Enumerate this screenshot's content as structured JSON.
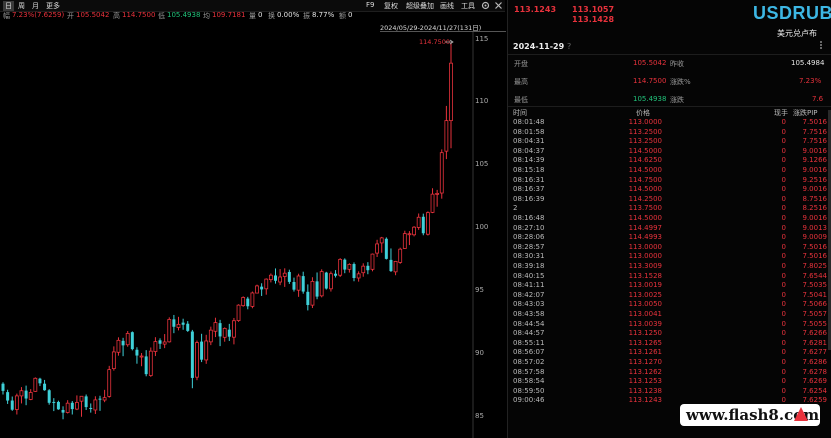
{
  "toolbar": {
    "left": [
      "日",
      "周",
      "月",
      "更多"
    ],
    "right": [
      "F9",
      "复权",
      "超级叠加",
      "画线",
      "工具"
    ],
    "icons": [
      "gear-icon",
      "close-icon"
    ]
  },
  "infobar": {
    "amp_label": "幅",
    "amp_value": "7.23%(7.6259)",
    "open_label": "开",
    "open_value": "105.5042",
    "high_label": "高",
    "high_value": "114.7500",
    "low_label": "低",
    "low_value": "105.4938",
    "avg_label": "均",
    "avg_value": "109.7181",
    "vol_label": "量",
    "vol_value": "0",
    "turn_label": "换",
    "turn_value": "0.00%",
    "swing_label": "振",
    "swing_value": "8.77%",
    "amount_label": "额",
    "amount_value": "0"
  },
  "date_range": "2024/05/29-2024/11/27(131日)",
  "chart": {
    "max_label": "114.7500",
    "y_ticks": [
      "115",
      "110",
      "105",
      "100",
      "95",
      "90",
      "85"
    ],
    "y_min": 83.3,
    "y_max": 115.6,
    "colors": {
      "up": "#e8323c",
      "down": "#3fd0d8"
    },
    "ohlc": [
      [
        87.62,
        87.74,
        86.76,
        87.05
      ],
      [
        86.95,
        87.14,
        86.01,
        86.28
      ],
      [
        86.28,
        86.6,
        85.46,
        85.55
      ],
      [
        85.57,
        86.83,
        85.17,
        86.65
      ],
      [
        86.65,
        87.35,
        86.05,
        87.06
      ],
      [
        87.07,
        87.47,
        85.91,
        86.44
      ],
      [
        86.37,
        87.19,
        86.31,
        86.92
      ],
      [
        87.01,
        88.12,
        86.97,
        88.05
      ],
      [
        88.02,
        88.09,
        87.43,
        87.65
      ],
      [
        87.62,
        87.92,
        87.06,
        87.1
      ],
      [
        87.1,
        87.19,
        85.95,
        86.1
      ],
      [
        86.17,
        86.47,
        85.44,
        86.16
      ],
      [
        86.17,
        86.27,
        85.54,
        85.58
      ],
      [
        85.53,
        85.82,
        84.79,
        85.32
      ],
      [
        85.33,
        86.31,
        85.25,
        86.07
      ],
      [
        86.1,
        86.24,
        85.17,
        85.6
      ],
      [
        85.6,
        86.69,
        85.52,
        86.13
      ],
      [
        86.23,
        86.62,
        84.99,
        86.62
      ],
      [
        86.61,
        86.76,
        85.53,
        85.76
      ],
      [
        85.69,
        86.05,
        85.32,
        85.66
      ],
      [
        85.53,
        86.62,
        85.21,
        86.33
      ],
      [
        86.43,
        86.66,
        85.46,
        86.39
      ],
      [
        86.32,
        87.13,
        86.15,
        86.51
      ],
      [
        86.61,
        89.04,
        86.51,
        88.74
      ],
      [
        88.82,
        90.59,
        88.66,
        90.15
      ],
      [
        90.12,
        91.31,
        89.85,
        91.07
      ],
      [
        91.03,
        91.27,
        89.81,
        90.67
      ],
      [
        90.72,
        91.81,
        90.56,
        91.62
      ],
      [
        91.72,
        91.78,
        90.27,
        90.37
      ],
      [
        90.32,
        90.52,
        89.21,
        89.86
      ],
      [
        89.8,
        90.06,
        89.01,
        89.82
      ],
      [
        89.79,
        90.29,
        88.21,
        88.38
      ],
      [
        88.27,
        90.5,
        88.16,
        90.21
      ],
      [
        90.18,
        91.32,
        89.82,
        90.97
      ],
      [
        91.07,
        91.23,
        90.38,
        90.8
      ],
      [
        90.77,
        91.57,
        90.45,
        90.94
      ],
      [
        90.95,
        92.9,
        90.89,
        92.73
      ],
      [
        92.74,
        93.09,
        91.64,
        92.15
      ],
      [
        92.09,
        92.94,
        91.86,
        92.34
      ],
      [
        92.48,
        92.79,
        91.91,
        92.31
      ],
      [
        92.39,
        92.6,
        91.74,
        91.82
      ],
      [
        91.77,
        91.9,
        87.26,
        88.08
      ],
      [
        88.14,
        91.05,
        87.9,
        90.89
      ],
      [
        90.97,
        91.59,
        89.34,
        89.53
      ],
      [
        89.51,
        91.51,
        89.2,
        91.02
      ],
      [
        90.95,
        92.16,
        90.69,
        91.88
      ],
      [
        91.79,
        92.87,
        91.33,
        92.48
      ],
      [
        92.44,
        92.7,
        90.61,
        91.38
      ],
      [
        91.31,
        92.1,
        90.96,
        92.02
      ],
      [
        91.92,
        92.38,
        91.02,
        91.36
      ],
      [
        91.32,
        92.85,
        90.75,
        92.63
      ],
      [
        92.64,
        93.94,
        92.54,
        93.87
      ],
      [
        93.83,
        94.57,
        93.74,
        94.48
      ],
      [
        94.39,
        94.53,
        93.54,
        93.78
      ],
      [
        93.77,
        94.95,
        93.62,
        94.84
      ],
      [
        94.83,
        95.5,
        94.81,
        95.4
      ],
      [
        95.34,
        95.61,
        94.6,
        95.12
      ],
      [
        95.17,
        96.0,
        94.7,
        95.94
      ],
      [
        95.9,
        96.39,
        95.68,
        96.25
      ],
      [
        96.23,
        96.79,
        95.58,
        95.81
      ],
      [
        95.71,
        96.74,
        95.46,
        96.11
      ],
      [
        96.15,
        96.8,
        95.32,
        96.41
      ],
      [
        96.51,
        96.69,
        95.56,
        95.72
      ],
      [
        95.71,
        96.06,
        94.95,
        95.1
      ],
      [
        95.06,
        96.37,
        94.53,
        96.19
      ],
      [
        96.18,
        96.53,
        94.78,
        94.95
      ],
      [
        94.93,
        95.52,
        93.45,
        93.88
      ],
      [
        93.87,
        96.09,
        93.64,
        95.76
      ],
      [
        95.76,
        96.47,
        94.34,
        94.55
      ],
      [
        94.61,
        96.72,
        94.49,
        96.54
      ],
      [
        96.46,
        96.52,
        95.11,
        95.19
      ],
      [
        95.17,
        96.55,
        94.95,
        96.37
      ],
      [
        96.37,
        96.66,
        96.07,
        96.21
      ],
      [
        96.25,
        97.61,
        96.11,
        97.51
      ],
      [
        97.49,
        97.59,
        96.41,
        96.7
      ],
      [
        96.72,
        97.2,
        96.46,
        97.11
      ],
      [
        97.14,
        97.27,
        95.77,
        96.03
      ],
      [
        96.03,
        96.56,
        95.74,
        96.36
      ],
      [
        96.45,
        97.2,
        96.13,
        96.97
      ],
      [
        97.0,
        97.29,
        96.33,
        96.65
      ],
      [
        96.72,
        97.98,
        96.56,
        97.93
      ],
      [
        98.01,
        99.07,
        97.7,
        98.74
      ],
      [
        98.82,
        99.3,
        98.04,
        99.22
      ],
      [
        99.15,
        99.26,
        97.5,
        97.55
      ],
      [
        97.47,
        98.38,
        96.51,
        96.58
      ],
      [
        96.52,
        97.39,
        96.25,
        97.35
      ],
      [
        97.27,
        98.44,
        97.16,
        98.32
      ],
      [
        98.38,
        99.79,
        98.34,
        99.56
      ],
      [
        99.54,
        99.76,
        98.65,
        99.55
      ],
      [
        99.47,
        100.16,
        99.34,
        100.07
      ],
      [
        100.05,
        101.16,
        99.86,
        100.86
      ],
      [
        100.9,
        101.15,
        99.43,
        99.59
      ],
      [
        99.51,
        101.33,
        99.41,
        101.23
      ],
      [
        101.25,
        103.17,
        101.19,
        102.7
      ],
      [
        102.7,
        103.04,
        101.7,
        102.76
      ],
      [
        102.79,
        106.26,
        102.34,
        106.0
      ],
      [
        106.12,
        109.72,
        105.49,
        108.55
      ],
      [
        108.55,
        114.75,
        106.35,
        113.12
      ]
    ]
  },
  "panel": {
    "quote_a": "113.1243",
    "quote_b": "113.1057",
    "quote_c": "113.1428",
    "symbol": "USDRUB",
    "name": "美元兑卢布",
    "date": "2024-11-29",
    "date_mark": "?",
    "stats": {
      "open_label": "开盘",
      "open_value": "105.5042",
      "prev_label": "昨收",
      "prev_value": "105.4984",
      "high_label": "最高",
      "high_value": "114.7500",
      "chgpct_label": "涨跌%",
      "chgpct_value": "7.23%",
      "low_label": "最低",
      "low_value": "105.4938",
      "chg_label": "涨跌",
      "chg_value": "7.6"
    },
    "tick_headers": {
      "time": "时间",
      "price": "价格",
      "vol": "现手",
      "pip": "涨跌PIP"
    },
    "ticks": [
      {
        "time": "08:01:48",
        "price": "113.0000",
        "vol": "0",
        "pip": "7.5016"
      },
      {
        "time": "08:01:58",
        "price": "113.2500",
        "vol": "0",
        "pip": "7.7516"
      },
      {
        "time": "08:04:31",
        "price": "113.2500",
        "vol": "0",
        "pip": "7.7516"
      },
      {
        "time": "08:04:37",
        "price": "114.5000",
        "vol": "0",
        "pip": "9.0016"
      },
      {
        "time": "08:14:39",
        "price": "114.6250",
        "vol": "0",
        "pip": "9.1266"
      },
      {
        "time": "08:15:18",
        "price": "114.5000",
        "vol": "0",
        "pip": "9.0016"
      },
      {
        "time": "08:16:31",
        "price": "114.7500",
        "vol": "0",
        "pip": "9.2516"
      },
      {
        "time": "08:16:37",
        "price": "114.5000",
        "vol": "0",
        "pip": "9.0016"
      },
      {
        "time": "08:16:39",
        "price": "114.2500",
        "vol": "0",
        "pip": "8.7516"
      },
      {
        "time": "2",
        "price": "113.7500",
        "vol": "0",
        "pip": "8.2516"
      },
      {
        "time": "08:16:48",
        "price": "114.5000",
        "vol": "0",
        "pip": "9.0016"
      },
      {
        "time": "08:27:10",
        "price": "114.4997",
        "vol": "0",
        "pip": "9.0013"
      },
      {
        "time": "08:28:06",
        "price": "114.4993",
        "vol": "0",
        "pip": "9.0009"
      },
      {
        "time": "08:28:57",
        "price": "113.0000",
        "vol": "0",
        "pip": "7.5016"
      },
      {
        "time": "08:30:31",
        "price": "113.0000",
        "vol": "0",
        "pip": "7.5016"
      },
      {
        "time": "08:39:18",
        "price": "113.3009",
        "vol": "0",
        "pip": "7.8025"
      },
      {
        "time": "08:40:15",
        "price": "113.1528",
        "vol": "0",
        "pip": "7.6544"
      },
      {
        "time": "08:41:11",
        "price": "113.0019",
        "vol": "0",
        "pip": "7.5035"
      },
      {
        "time": "08:42:07",
        "price": "113.0025",
        "vol": "0",
        "pip": "7.5041"
      },
      {
        "time": "08:43:03",
        "price": "113.0050",
        "vol": "0",
        "pip": "7.5066"
      },
      {
        "time": "08:43:58",
        "price": "113.0041",
        "vol": "0",
        "pip": "7.5057"
      },
      {
        "time": "08:44:54",
        "price": "113.0039",
        "vol": "0",
        "pip": "7.5055"
      },
      {
        "time": "08:44:57",
        "price": "113.1250",
        "vol": "0",
        "pip": "7.6266"
      },
      {
        "time": "08:55:11",
        "price": "113.1265",
        "vol": "0",
        "pip": "7.6281"
      },
      {
        "time": "08:56:07",
        "price": "113.1261",
        "vol": "0",
        "pip": "7.6277"
      },
      {
        "time": "08:57:02",
        "price": "113.1270",
        "vol": "0",
        "pip": "7.6286"
      },
      {
        "time": "08:57:58",
        "price": "113.1262",
        "vol": "0",
        "pip": "7.6278"
      },
      {
        "time": "08:58:54",
        "price": "113.1253",
        "vol": "0",
        "pip": "7.6269"
      },
      {
        "time": "08:59:50",
        "price": "113.1238",
        "vol": "0",
        "pip": "7.6254"
      },
      {
        "time": "09:00:46",
        "price": "113.1243",
        "vol": "0",
        "pip": "7.6259"
      }
    ]
  },
  "watermark": "www.flash8.com"
}
